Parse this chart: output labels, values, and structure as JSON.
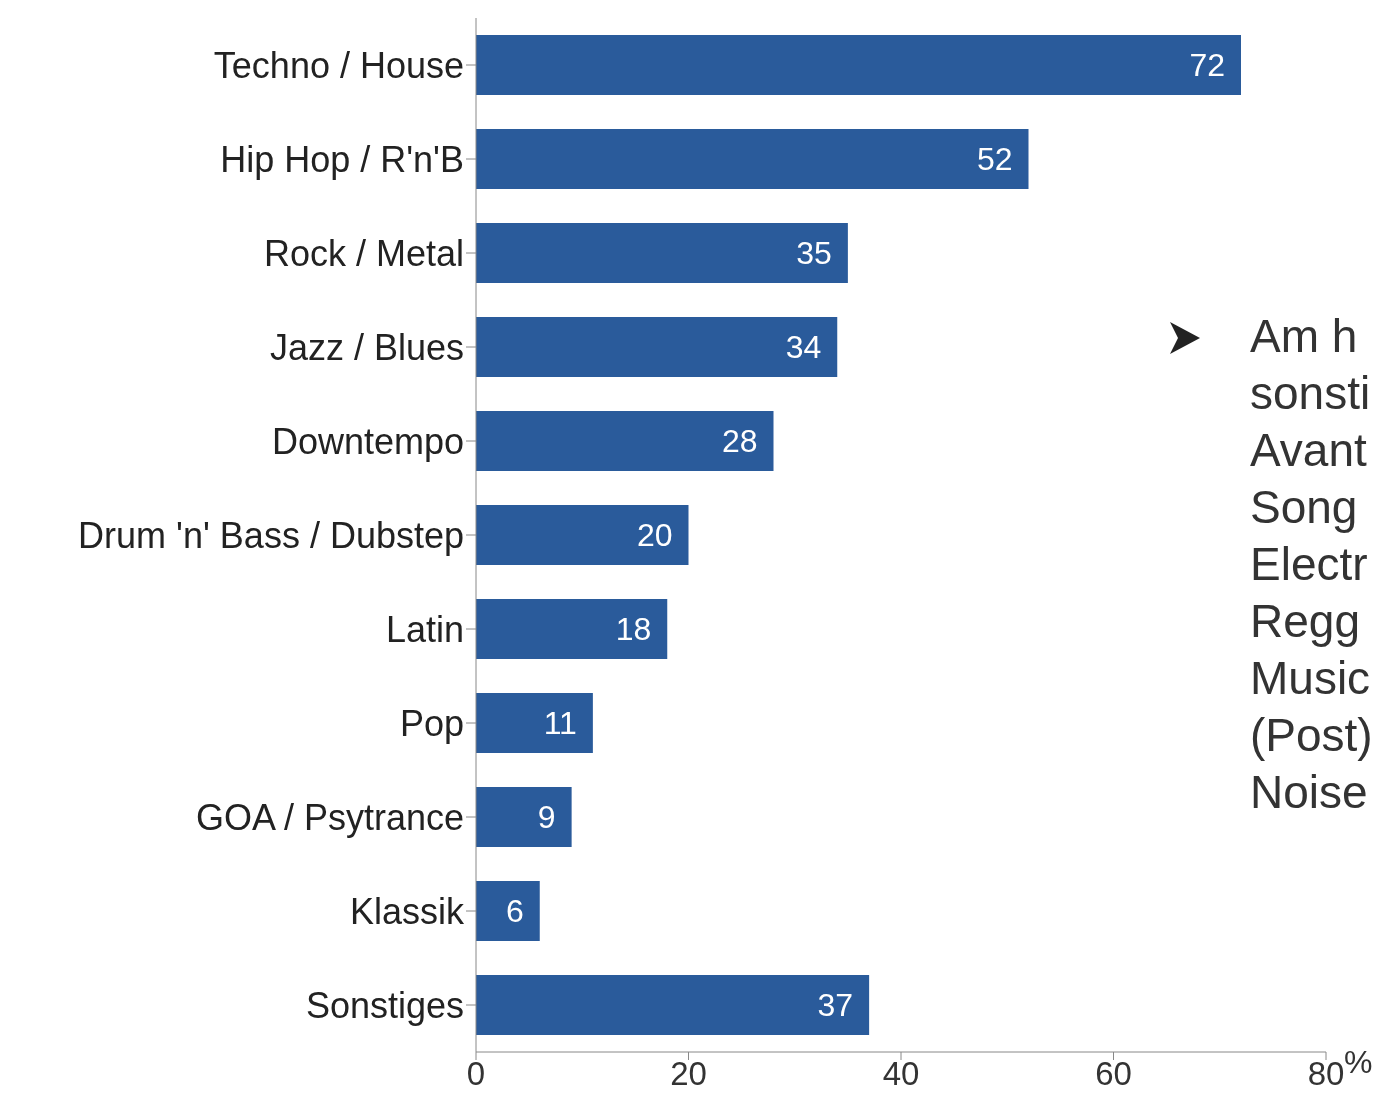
{
  "chart_data": {
    "type": "bar",
    "orientation": "horizontal",
    "categories": [
      "Techno / House",
      "Hip Hop / R'n'B",
      "Rock / Metal",
      "Jazz / Blues",
      "Downtempo",
      "Drum 'n' Bass / Dubstep",
      "Latin",
      "Pop",
      "GOA / Psytrance",
      "Klassik",
      "Sonstiges"
    ],
    "values": [
      72,
      52,
      35,
      34,
      28,
      20,
      18,
      11,
      9,
      6,
      37
    ],
    "color": "#2a5b9b",
    "xlim": [
      0,
      80
    ],
    "xticks": [
      0,
      20,
      40,
      60,
      80
    ],
    "xlabel": "%",
    "data_labels": true,
    "grid": false,
    "legend": false,
    "annotations": [
      "Am h\nsonsti\nAvant\nSong\nElectr\nRegg\nMusic\n(Post)\nNoise"
    ]
  }
}
